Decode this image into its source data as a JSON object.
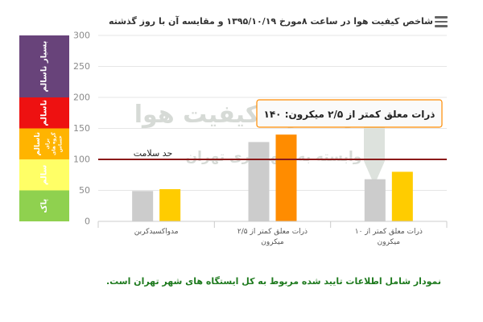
{
  "title": "شاخص کیفیت هوا در ساعت ۸مورخ ۱۳۹۵/۱۰/۱۹ و مقایسه آن با روز گذشته",
  "menu_icon": "hamburger-menu-icon",
  "chart_data": {
    "type": "bar",
    "y_ticks": [
      "300",
      "250",
      "200",
      "150",
      "100",
      "50",
      "0"
    ],
    "ylim": [
      0,
      300
    ],
    "categories": [
      [
        "مدواکسیدکربن"
      ],
      [
        "ذرات معلق کمتر از ۲/۵",
        "میکرون"
      ],
      [
        "ذرات معلق کمتر از ۱۰",
        "میکرون"
      ]
    ],
    "series": [
      {
        "color": "#cccccc",
        "values": [
          49,
          128,
          68
        ]
      },
      {
        "color": "#ffcc00",
        "values": [
          52,
          140,
          80
        ]
      }
    ],
    "highlight_color": "#ff8c00",
    "highlight": {
      "category": 1,
      "series": 1
    },
    "bands": [
      {
        "label": "پاک",
        "range": [
          0,
          50
        ],
        "color": "#8fd14f"
      },
      {
        "label": "سالم",
        "range": [
          50,
          100
        ],
        "color": "#ffff66"
      },
      {
        "label": "ناسالم",
        "sub": [
          "برای",
          "گروه های",
          "حساس"
        ],
        "range": [
          100,
          150
        ],
        "color": "#ffb400"
      },
      {
        "label": "ناسالم",
        "range": [
          150,
          200
        ],
        "color": "#ee1111"
      },
      {
        "label": "بسیار ناسالم",
        "range": [
          200,
          300
        ],
        "color": "#68437a"
      }
    ],
    "threshold": {
      "value": 100,
      "label": "حد سلامت",
      "color": "#8b1a1a"
    },
    "tooltip": "ذرات معلق کمتر از ۲/۵ میکرون: ۱۴۰",
    "watermark": [
      "مرکز کنترل کیفیت هوا",
      "وابسته به شهرداری تهران"
    ]
  },
  "footnote": "نمودار شامل اطلاعات تایید شده مربوط به کل ایستگاه های شهر تهران است."
}
